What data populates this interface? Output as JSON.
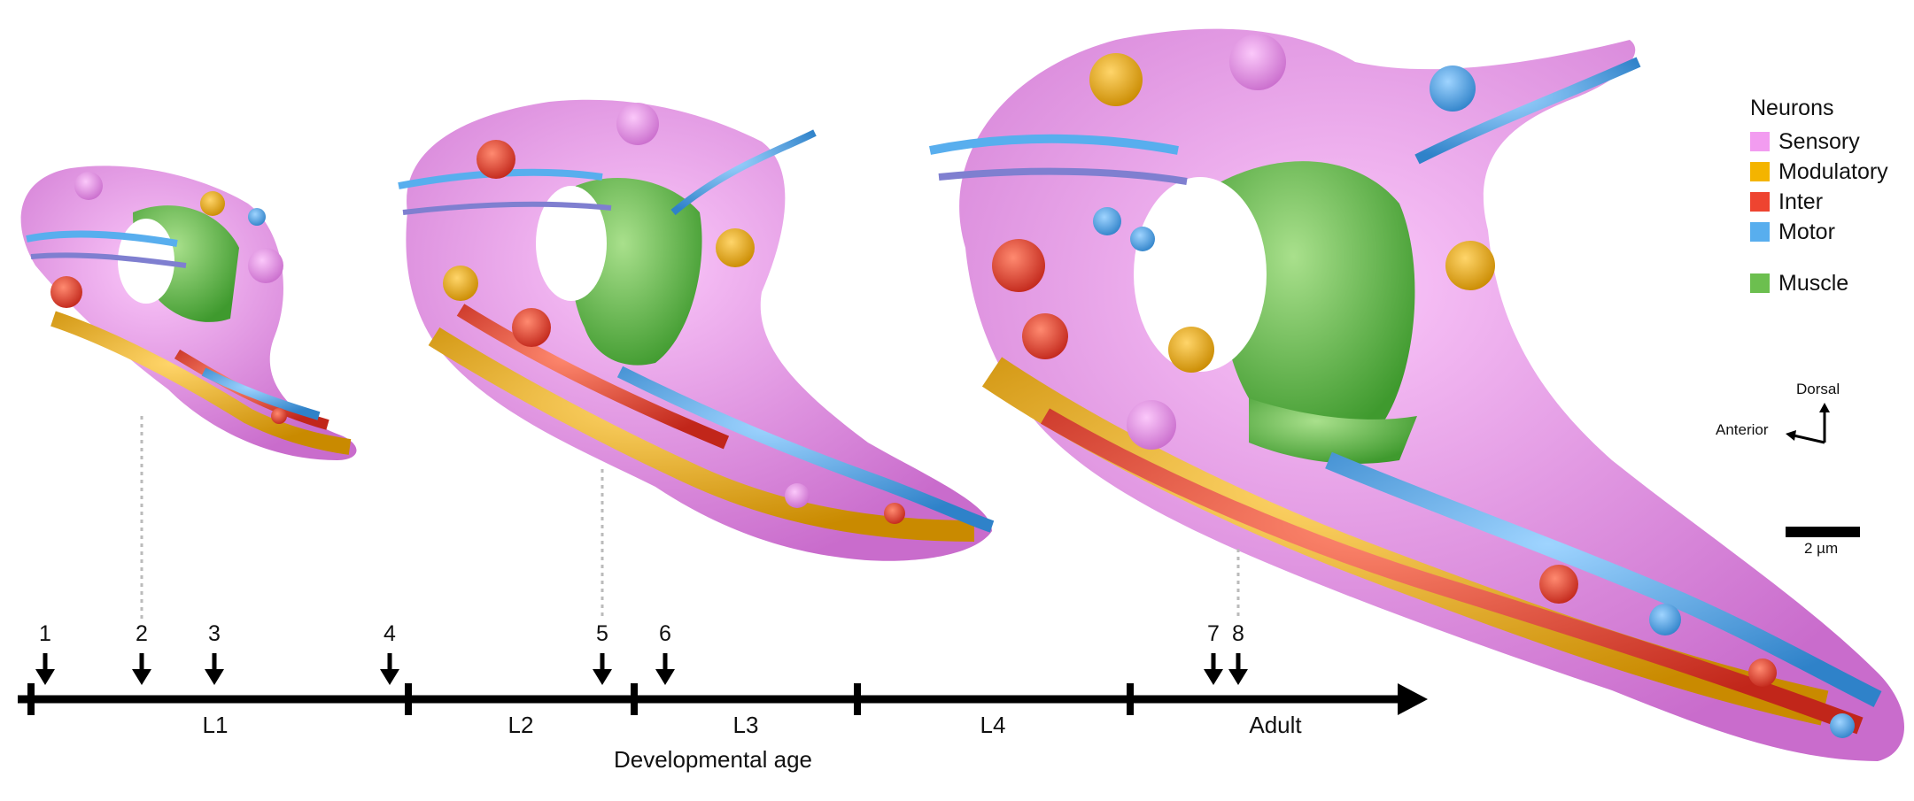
{
  "legend": {
    "title": "Neurons",
    "items": [
      {
        "label": "Sensory",
        "color": "#f29cf0"
      },
      {
        "label": "Modulatory",
        "color": "#f4b400"
      },
      {
        "label": "Inter",
        "color": "#ee4430"
      },
      {
        "label": "Motor",
        "color": "#58aeee"
      }
    ],
    "muscle": {
      "label": "Muscle",
      "color": "#6cbf4f"
    }
  },
  "orientation": {
    "dorsal": "Dorsal",
    "anterior": "Anterior"
  },
  "scale_bar": {
    "label": "2 µm"
  },
  "timeline": {
    "axis_title": "Developmental age",
    "stages": [
      "L1",
      "L2",
      "L3",
      "L4",
      "Adult"
    ],
    "markers": [
      "1",
      "2",
      "3",
      "4",
      "5",
      "6",
      "7",
      "8"
    ]
  },
  "renderings": [
    {
      "label": "small-brain"
    },
    {
      "label": "medium-brain"
    },
    {
      "label": "large-brain"
    }
  ]
}
